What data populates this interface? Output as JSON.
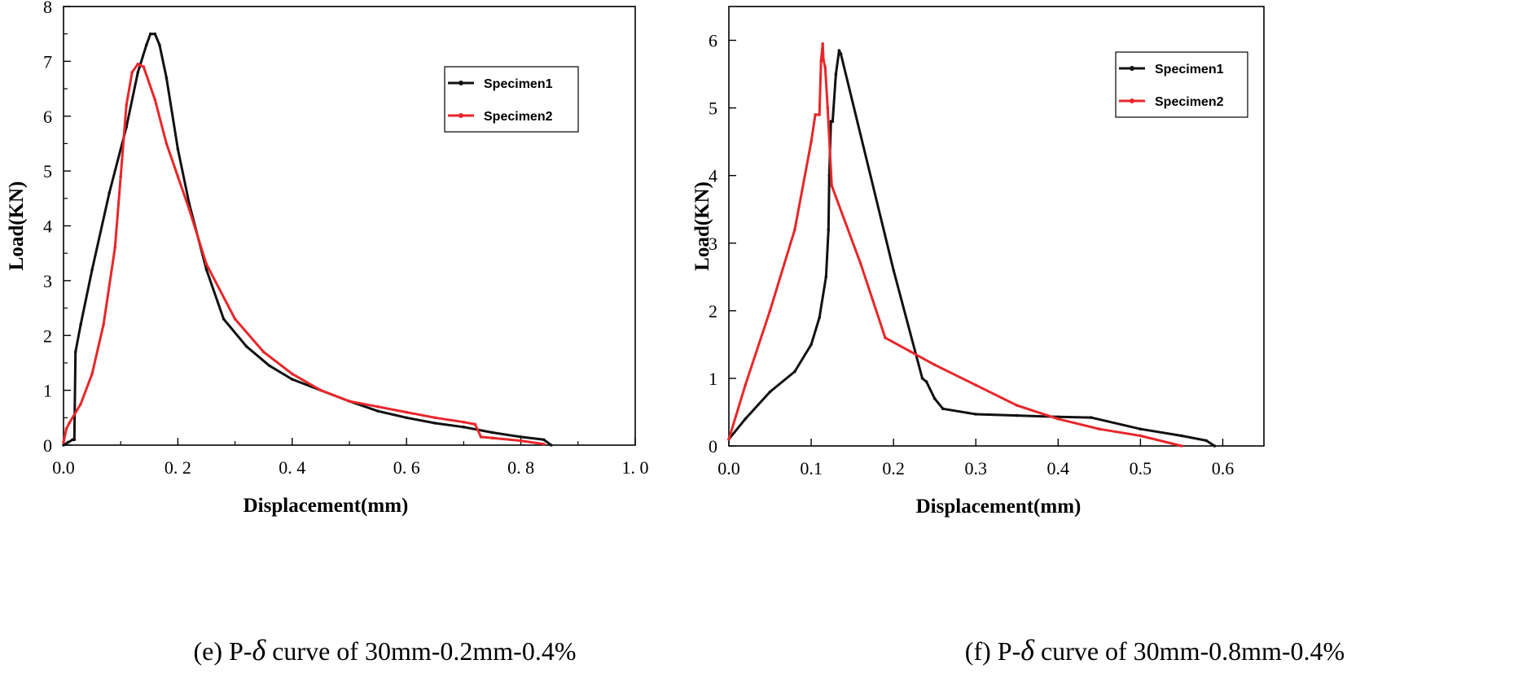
{
  "chart_data": [
    {
      "type": "line",
      "panel": "e",
      "caption": {
        "prefix": "(e) P-",
        "symbol": "δ",
        "suffix": " curve of 30mm-0.2mm-0.4%"
      },
      "xlabel": "Displacement(mm)",
      "ylabel": "Load(KN)",
      "xlim": [
        0,
        1.0
      ],
      "ylim": [
        0,
        8
      ],
      "xticks": [
        0,
        0.2,
        0.4,
        0.6,
        0.8,
        1.0
      ],
      "xtick_labels": [
        "0.0",
        "0. 2",
        "0. 4",
        "0. 6",
        "0. 8",
        "1. 0"
      ],
      "yticks": [
        0,
        1,
        2,
        3,
        4,
        5,
        6,
        7,
        8
      ],
      "ytick_labels": [
        "0",
        "1",
        "2",
        "3",
        "4",
        "5",
        "6",
        "7",
        "8"
      ],
      "legend_position": "top-right",
      "series": [
        {
          "name": "Specimen1",
          "color": "#111111",
          "x": [
            0,
            0.008,
            0.016,
            0.019,
            0.021,
            0.03,
            0.05,
            0.08,
            0.11,
            0.13,
            0.145,
            0.152,
            0.16,
            0.168,
            0.18,
            0.2,
            0.22,
            0.25,
            0.28,
            0.32,
            0.36,
            0.4,
            0.45,
            0.5,
            0.55,
            0.6,
            0.65,
            0.7,
            0.75,
            0.8,
            0.84,
            0.853
          ],
          "y": [
            0,
            0.05,
            0.1,
            0.1,
            1.7,
            2.2,
            3.2,
            4.6,
            5.8,
            6.8,
            7.3,
            7.5,
            7.5,
            7.3,
            6.7,
            5.4,
            4.4,
            3.2,
            2.3,
            1.8,
            1.45,
            1.2,
            1.0,
            0.8,
            0.62,
            0.5,
            0.4,
            0.33,
            0.23,
            0.15,
            0.1,
            0
          ]
        },
        {
          "name": "Specimen2",
          "color": "#e8262a",
          "x": [
            0,
            0.005,
            0.01,
            0.03,
            0.05,
            0.07,
            0.09,
            0.1,
            0.11,
            0.12,
            0.13,
            0.14,
            0.16,
            0.18,
            0.2,
            0.22,
            0.25,
            0.3,
            0.35,
            0.4,
            0.45,
            0.5,
            0.55,
            0.6,
            0.65,
            0.7,
            0.72,
            0.73,
            0.75,
            0.8,
            0.84
          ],
          "y": [
            0.05,
            0.3,
            0.4,
            0.75,
            1.3,
            2.2,
            3.6,
            4.9,
            6.2,
            6.8,
            6.95,
            6.9,
            6.3,
            5.5,
            4.9,
            4.3,
            3.3,
            2.3,
            1.7,
            1.3,
            1.0,
            0.8,
            0.7,
            0.6,
            0.5,
            0.42,
            0.38,
            0.15,
            0.13,
            0.08,
            0.02
          ]
        }
      ]
    },
    {
      "type": "line",
      "panel": "f",
      "caption": {
        "prefix": "(f) P-",
        "symbol": "δ",
        "suffix": " curve of 30mm-0.8mm-0.4%"
      },
      "xlabel": "Displacement(mm)",
      "ylabel": "Load(KN)",
      "xlim": [
        0,
        0.65
      ],
      "ylim": [
        0,
        6.5
      ],
      "xticks": [
        0,
        0.1,
        0.2,
        0.3,
        0.4,
        0.5,
        0.6
      ],
      "xtick_labels": [
        "0.0",
        "0.1",
        "0.2",
        "0.3",
        "0.4",
        "0.5",
        "0.6"
      ],
      "yticks": [
        0,
        1,
        2,
        3,
        4,
        5,
        6
      ],
      "ytick_labels": [
        "0",
        "1",
        "2",
        "3",
        "4",
        "5",
        "6"
      ],
      "legend_position": "top-right",
      "series": [
        {
          "name": "Specimen1",
          "color": "#111111",
          "x": [
            0,
            0.02,
            0.05,
            0.08,
            0.1,
            0.11,
            0.118,
            0.121,
            0.122,
            0.124,
            0.126,
            0.13,
            0.134,
            0.136,
            0.2,
            0.235,
            0.24,
            0.25,
            0.26,
            0.3,
            0.35,
            0.4,
            0.44,
            0.5,
            0.55,
            0.58,
            0.59
          ],
          "y": [
            0.1,
            0.4,
            0.8,
            1.1,
            1.5,
            1.9,
            2.5,
            3.2,
            4.0,
            4.8,
            4.8,
            5.5,
            5.85,
            5.8,
            2.6,
            1.0,
            0.95,
            0.7,
            0.55,
            0.47,
            0.45,
            0.43,
            0.42,
            0.25,
            0.15,
            0.08,
            0
          ]
        },
        {
          "name": "Specimen2",
          "color": "#e8262a",
          "x": [
            0,
            0.02,
            0.05,
            0.08,
            0.1,
            0.105,
            0.11,
            0.112,
            0.114,
            0.115,
            0.117,
            0.12,
            0.125,
            0.16,
            0.19,
            0.22,
            0.25,
            0.3,
            0.35,
            0.4,
            0.45,
            0.5,
            0.55
          ],
          "y": [
            0.1,
            0.9,
            2.0,
            3.2,
            4.5,
            4.9,
            4.9,
            5.7,
            5.95,
            5.7,
            5.6,
            5.0,
            3.85,
            2.7,
            1.6,
            1.4,
            1.2,
            0.9,
            0.6,
            0.4,
            0.25,
            0.15,
            0
          ]
        }
      ]
    }
  ]
}
